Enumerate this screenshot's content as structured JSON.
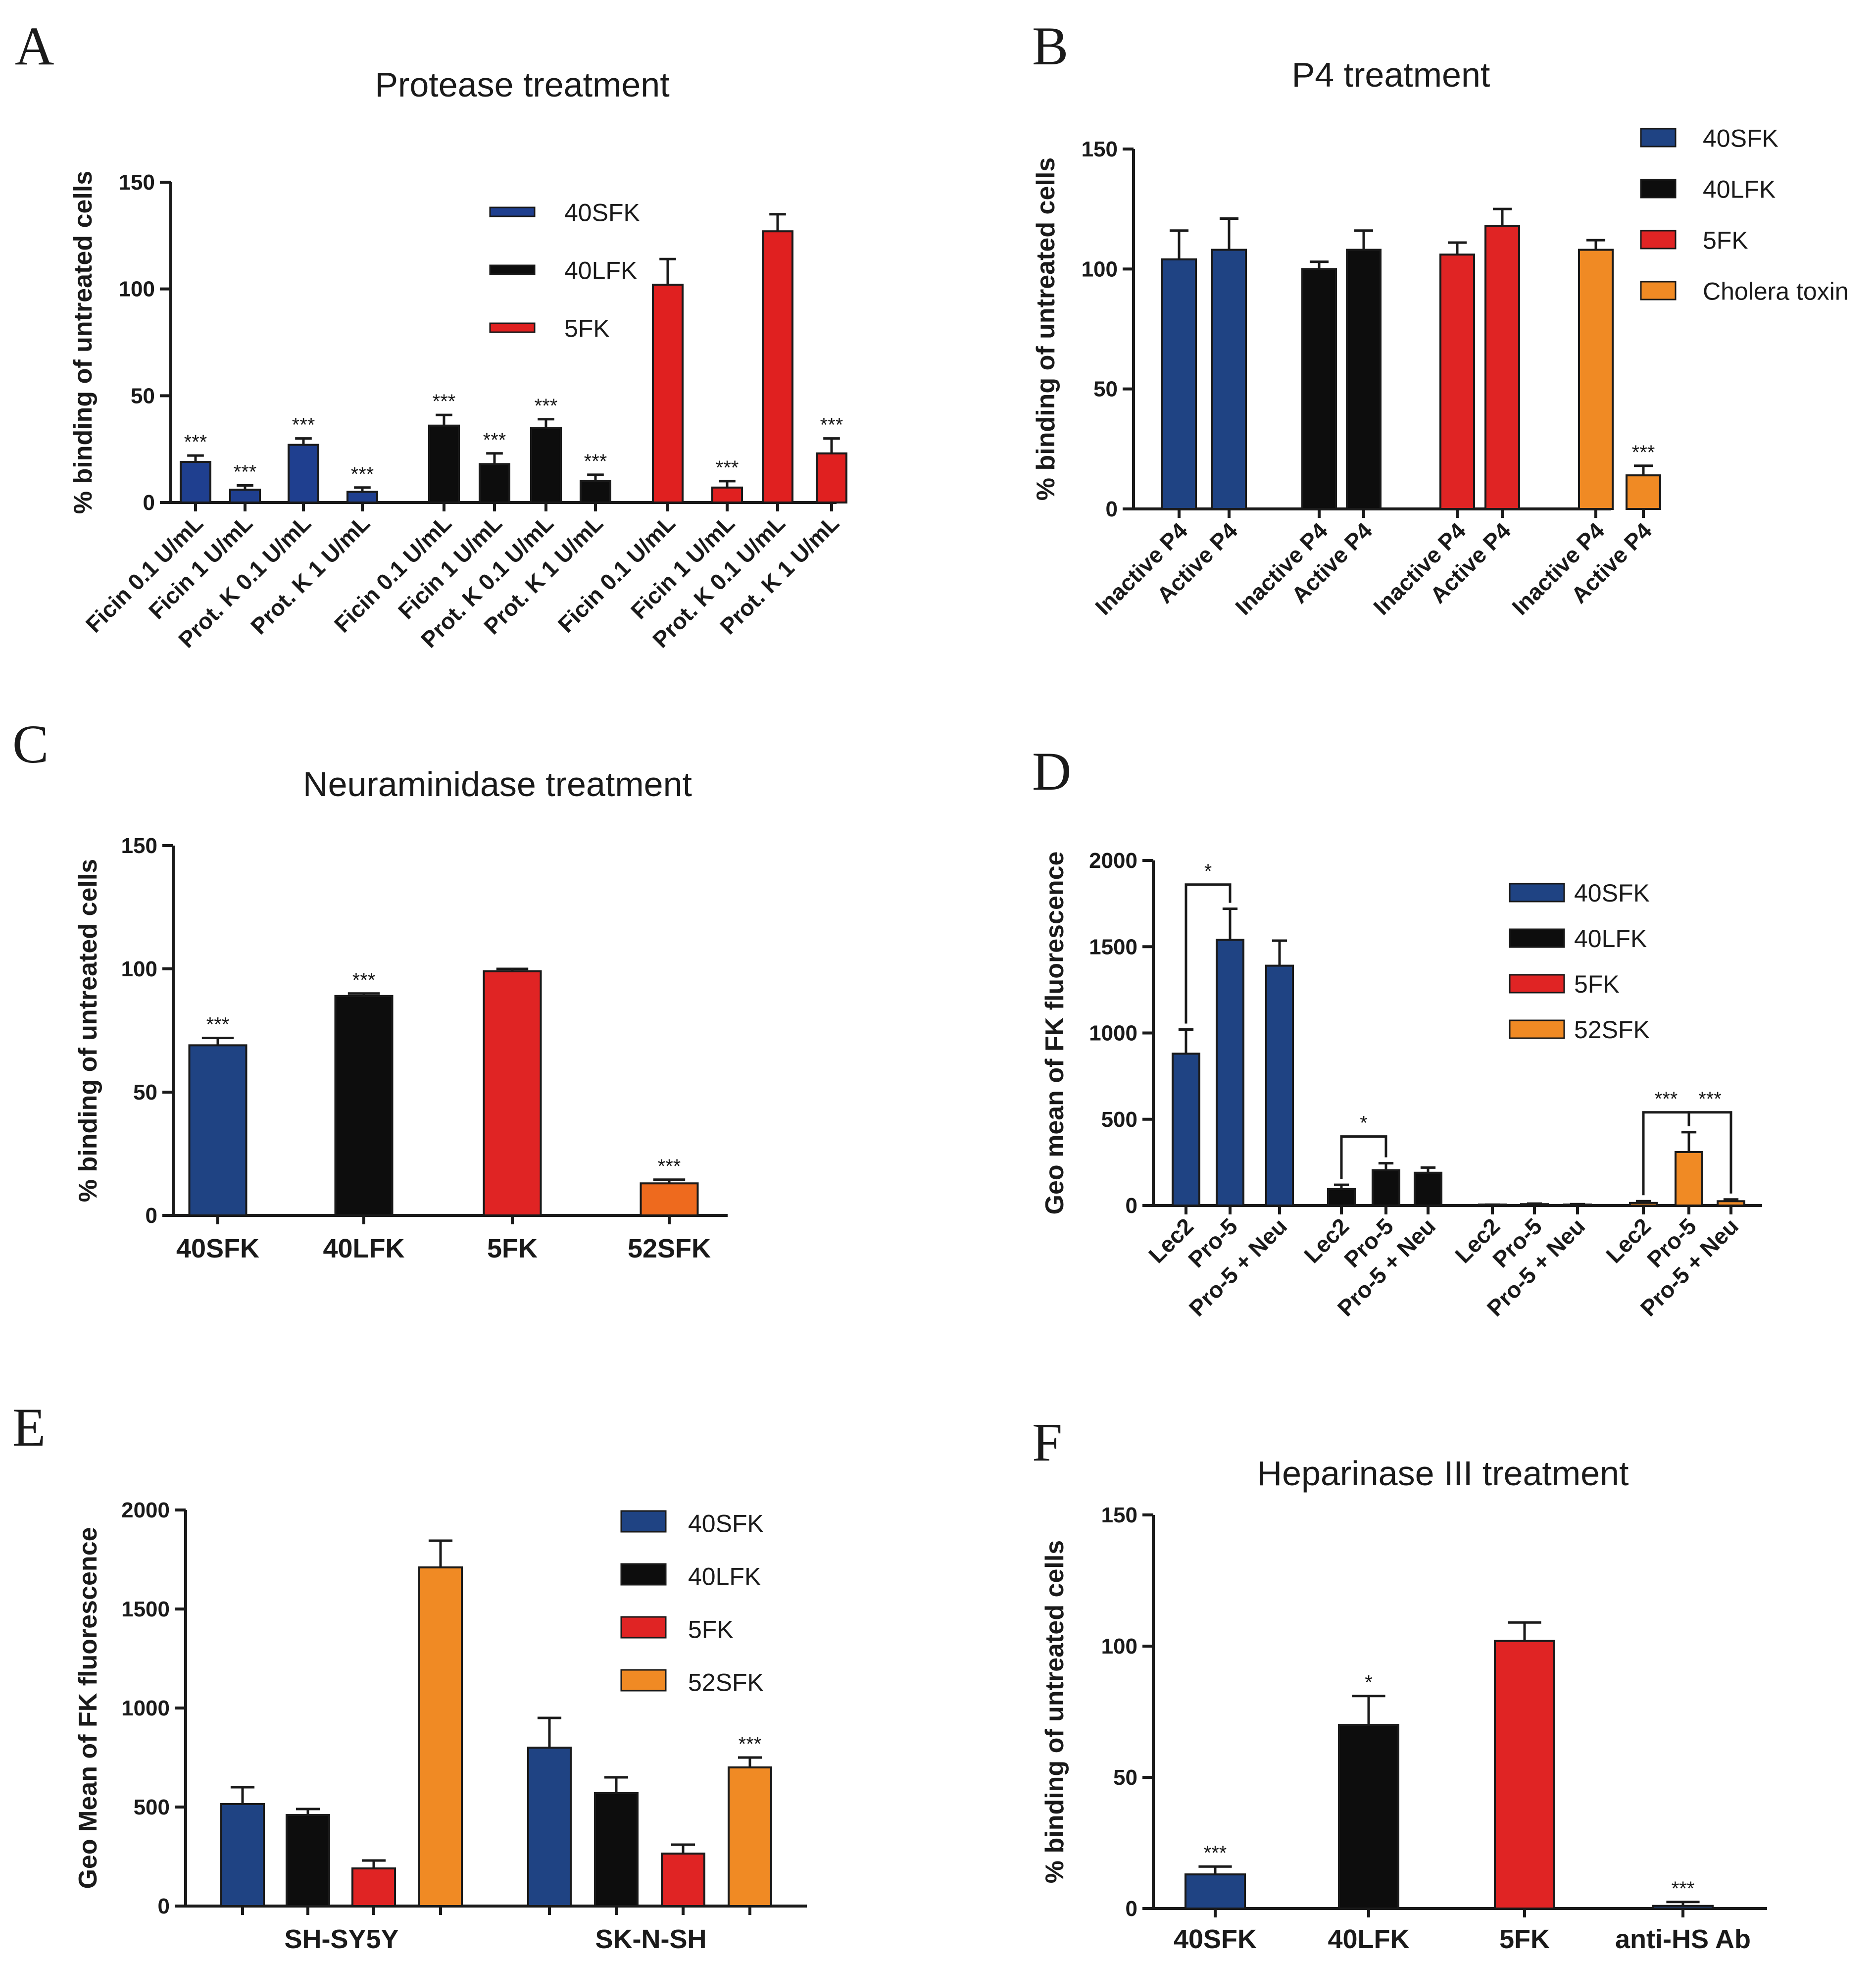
{
  "chart_data": [
    {
      "panel": "A",
      "type": "bar",
      "title": "Protease treatment",
      "ylabel": "% binding of untreated cells",
      "ylim": [
        0,
        150
      ],
      "yticks": [
        0,
        50,
        100,
        150
      ],
      "legend": [
        {
          "name": "40SFK",
          "color": "#1f3f8f"
        },
        {
          "name": "40LFK",
          "color": "#0d0d0d"
        },
        {
          "name": "5FK",
          "color": "#e02020"
        }
      ],
      "legend_position": "top-center",
      "x_style": "rotated",
      "bars": [
        {
          "label": "Ficin 0.1 U/mL",
          "series": "40SFK",
          "value": 19,
          "err": 3,
          "sig": "***",
          "group": 0
        },
        {
          "label": "Ficin 1 U/mL",
          "series": "40SFK",
          "value": 6,
          "err": 2,
          "sig": "***",
          "group": 0
        },
        {
          "label": "Prot. K 0.1 U/mL",
          "series": "40SFK",
          "value": 27,
          "err": 3,
          "sig": "***",
          "group": 0
        },
        {
          "label": "Prot. K 1 U/mL",
          "series": "40SFK",
          "value": 5,
          "err": 2,
          "sig": "***",
          "group": 0
        },
        {
          "label": "Ficin 0.1 U/mL",
          "series": "40LFK",
          "value": 36,
          "err": 5,
          "sig": "***",
          "group": 1
        },
        {
          "label": "Ficin 1 U/mL",
          "series": "40LFK",
          "value": 18,
          "err": 5,
          "sig": "***",
          "group": 1
        },
        {
          "label": "Prot. K 0.1 U/mL",
          "series": "40LFK",
          "value": 35,
          "err": 4,
          "sig": "***",
          "group": 1
        },
        {
          "label": "Prot. K 1 U/mL",
          "series": "40LFK",
          "value": 10,
          "err": 3,
          "sig": "***",
          "group": 1
        },
        {
          "label": "Ficin 0.1 U/mL",
          "series": "5FK",
          "value": 102,
          "err": 12,
          "sig": "",
          "group": 2
        },
        {
          "label": "Ficin 1 U/mL",
          "series": "5FK",
          "value": 7,
          "err": 3,
          "sig": "***",
          "group": 2
        },
        {
          "label": "Prot. K 0.1 U/mL",
          "series": "5FK",
          "value": 127,
          "err": 8,
          "sig": "",
          "group": 2
        },
        {
          "label": "Prot. K 1 U/mL",
          "series": "5FK",
          "value": 23,
          "err": 7,
          "sig": "***",
          "group": 2
        }
      ]
    },
    {
      "panel": "B",
      "type": "bar",
      "title": "P4 treatment",
      "ylabel": "% binding of untreated cells",
      "ylim": [
        0,
        150
      ],
      "yticks": [
        0,
        50,
        100,
        150
      ],
      "legend": [
        {
          "name": "40SFK",
          "color": "#1f4383"
        },
        {
          "name": "40LFK",
          "color": "#0d0d0d"
        },
        {
          "name": "5FK",
          "color": "#e02424"
        },
        {
          "name": "Cholera toxin",
          "color": "#f08a24"
        }
      ],
      "legend_position": "top-right",
      "x_style": "rotated",
      "bars": [
        {
          "label": "Inactive P4",
          "series": "40SFK",
          "value": 104,
          "err": 12,
          "sig": "",
          "group": 0
        },
        {
          "label": "Active P4",
          "series": "40SFK",
          "value": 108,
          "err": 13,
          "sig": "",
          "group": 0
        },
        {
          "label": "Inactive P4",
          "series": "40LFK",
          "value": 100,
          "err": 3,
          "sig": "",
          "group": 1
        },
        {
          "label": "Active P4",
          "series": "40LFK",
          "value": 108,
          "err": 8,
          "sig": "",
          "group": 1
        },
        {
          "label": "Inactive P4",
          "series": "5FK",
          "value": 106,
          "err": 5,
          "sig": "",
          "group": 2
        },
        {
          "label": "Active P4",
          "series": "5FK",
          "value": 118,
          "err": 7,
          "sig": "",
          "group": 2
        },
        {
          "label": "Inactive P4",
          "series": "Cholera toxin",
          "value": 108,
          "err": 4,
          "sig": "",
          "group": 3
        },
        {
          "label": "Active P4",
          "series": "Cholera toxin",
          "value": 14,
          "err": 4,
          "sig": "***",
          "group": 3
        }
      ]
    },
    {
      "panel": "C",
      "type": "bar",
      "title": "Neuraminidase treatment",
      "ylabel": "% binding of untreated cells",
      "ylim": [
        0,
        150
      ],
      "yticks": [
        0,
        50,
        100,
        150
      ],
      "legend": [],
      "x_style": "horizontal",
      "bars": [
        {
          "label": "40SFK",
          "series": "40SFK",
          "color": "#1f4383",
          "value": 69,
          "err": 3,
          "sig": "***",
          "group": 0
        },
        {
          "label": "40LFK",
          "series": "40LFK",
          "color": "#0d0d0d",
          "value": 89,
          "err": 1,
          "sig": "***",
          "group": 1
        },
        {
          "label": "5FK",
          "series": "5FK",
          "color": "#e02424",
          "value": 99,
          "err": 1,
          "sig": "",
          "group": 2
        },
        {
          "label": "52SFK",
          "series": "52SFK",
          "color": "#ee6a1e",
          "value": 13,
          "err": 1.5,
          "sig": "***",
          "group": 3
        }
      ]
    },
    {
      "panel": "D",
      "type": "bar",
      "title": "",
      "ylabel": "Geo mean of FK fluorescence",
      "ylim": [
        0,
        2000
      ],
      "yticks": [
        0,
        500,
        1000,
        1500,
        2000
      ],
      "legend": [
        {
          "name": "40SFK",
          "color": "#1f4383"
        },
        {
          "name": "40LFK",
          "color": "#0d0d0d"
        },
        {
          "name": "5FK",
          "color": "#e02424"
        },
        {
          "name": "52SFK",
          "color": "#f08a24"
        }
      ],
      "legend_position": "top-right",
      "x_style": "rotated",
      "bars": [
        {
          "label": "Lec2",
          "series": "40SFK",
          "value": 880,
          "err": 140,
          "sig": "",
          "group": 0
        },
        {
          "label": "Pro-5",
          "series": "40SFK",
          "value": 1540,
          "err": 180,
          "sig": "",
          "group": 0
        },
        {
          "label": "Pro-5 + Neu",
          "series": "40SFK",
          "value": 1390,
          "err": 145,
          "sig": "",
          "group": 0
        },
        {
          "label": "Lec2",
          "series": "40LFK",
          "value": 95,
          "err": 25,
          "sig": "",
          "group": 1
        },
        {
          "label": "Pro-5",
          "series": "40LFK",
          "value": 205,
          "err": 40,
          "sig": "",
          "group": 1
        },
        {
          "label": "Pro-5 + Neu",
          "series": "40LFK",
          "value": 190,
          "err": 30,
          "sig": "",
          "group": 1
        },
        {
          "label": "Lec2",
          "series": "5FK",
          "value": 3,
          "err": 2,
          "sig": "",
          "group": 2
        },
        {
          "label": "Pro-5",
          "series": "5FK",
          "value": 8,
          "err": 3,
          "sig": "",
          "group": 2
        },
        {
          "label": "Pro-5 + Neu",
          "series": "5FK",
          "value": 5,
          "err": 3,
          "sig": "",
          "group": 2
        },
        {
          "label": "Lec2",
          "series": "52SFK",
          "value": 15,
          "err": 10,
          "sig": "",
          "group": 3
        },
        {
          "label": "Pro-5",
          "series": "52SFK",
          "value": 310,
          "err": 115,
          "sig": "",
          "group": 3
        },
        {
          "label": "Pro-5 + Neu",
          "series": "52SFK",
          "value": 25,
          "err": 10,
          "sig": "",
          "group": 3
        }
      ],
      "brackets": [
        {
          "from": 0,
          "to": 1,
          "sig": "*",
          "value": 1860
        },
        {
          "from": 3,
          "to": 4,
          "sig": "*",
          "value": 400
        },
        {
          "from": 9,
          "to": 10,
          "sig": "***",
          "value": 540
        },
        {
          "from": 10,
          "to": 11,
          "sig": "***",
          "value": 540
        }
      ]
    },
    {
      "panel": "E",
      "type": "bar",
      "title": "",
      "ylabel": "Geo Mean of FK fluorescence",
      "ylim": [
        0,
        2000
      ],
      "yticks": [
        0,
        500,
        1000,
        1500,
        2000
      ],
      "legend": [
        {
          "name": "40SFK",
          "color": "#1f4383"
        },
        {
          "name": "40LFK",
          "color": "#0d0d0d"
        },
        {
          "name": "5FK",
          "color": "#e02424"
        },
        {
          "name": "52SFK",
          "color": "#f08a24"
        }
      ],
      "legend_position": "top-right",
      "x_style": "groups",
      "categories": [
        "SH-SY5Y",
        "SK-N-SH"
      ],
      "bars": [
        {
          "label": "SH-SY5Y",
          "series": "40SFK",
          "value": 515,
          "err": 85,
          "sig": "",
          "group": 0
        },
        {
          "label": "SH-SY5Y",
          "series": "40LFK",
          "value": 460,
          "err": 30,
          "sig": "",
          "group": 0
        },
        {
          "label": "SH-SY5Y",
          "series": "5FK",
          "value": 190,
          "err": 40,
          "sig": "",
          "group": 0
        },
        {
          "label": "SH-SY5Y",
          "series": "52SFK",
          "value": 1710,
          "err": 135,
          "sig": "",
          "group": 0
        },
        {
          "label": "SK-N-SH",
          "series": "40SFK",
          "value": 800,
          "err": 150,
          "sig": "",
          "group": 1
        },
        {
          "label": "SK-N-SH",
          "series": "40LFK",
          "value": 570,
          "err": 80,
          "sig": "",
          "group": 1
        },
        {
          "label": "SK-N-SH",
          "series": "5FK",
          "value": 265,
          "err": 45,
          "sig": "",
          "group": 1
        },
        {
          "label": "SK-N-SH",
          "series": "52SFK",
          "value": 700,
          "err": 50,
          "sig": "***",
          "group": 1
        }
      ]
    },
    {
      "panel": "F",
      "type": "bar",
      "title": "Heparinase III treatment",
      "ylabel": "% binding of untreated cells",
      "ylim": [
        0,
        150
      ],
      "yticks": [
        0,
        50,
        100,
        150
      ],
      "legend": [],
      "x_style": "horizontal",
      "bars": [
        {
          "label": "40SFK",
          "series": "40SFK",
          "color": "#1f4383",
          "value": 13,
          "err": 3,
          "sig": "***",
          "group": 0
        },
        {
          "label": "40LFK",
          "series": "40LFK",
          "color": "#0d0d0d",
          "value": 70,
          "err": 11,
          "sig": "*",
          "group": 1
        },
        {
          "label": "5FK",
          "series": "5FK",
          "color": "#e02424",
          "value": 102,
          "err": 7,
          "sig": "",
          "group": 2
        },
        {
          "label": "anti-HS Ab",
          "series": "anti-HS Ab",
          "color": "#1f4383",
          "value": 1,
          "err": 1.5,
          "sig": "***",
          "group": 3
        }
      ]
    }
  ]
}
